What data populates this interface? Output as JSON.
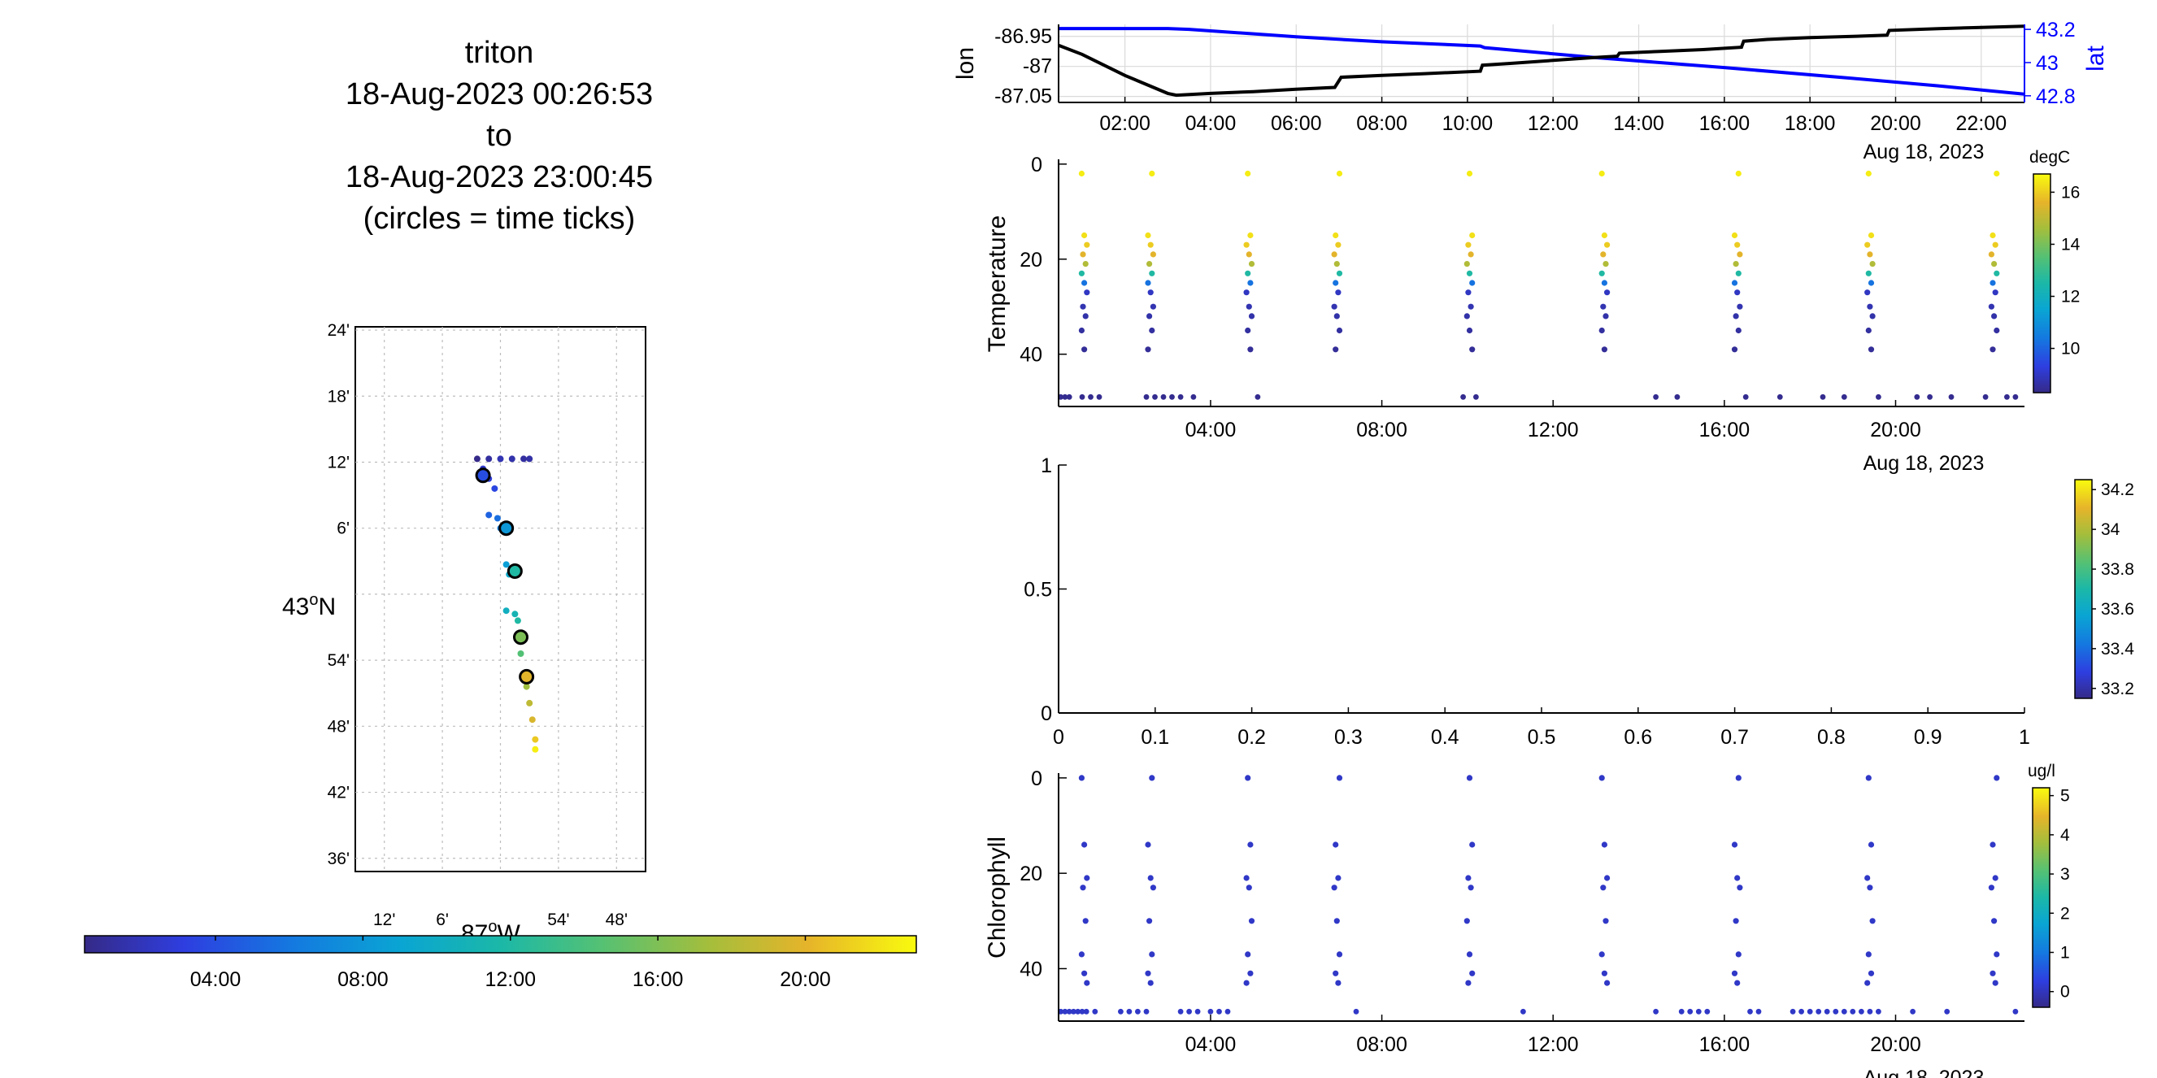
{
  "title_lines": [
    "triton",
    "18-Aug-2023 00:26:53",
    "to",
    "18-Aug-2023 23:00:45",
    "(circles = time ticks)"
  ],
  "colors": {
    "track_lon": "#000000",
    "track_lat": "#0000ff",
    "grid": "#d9d9d9"
  },
  "chart_data": [
    {
      "id": "map",
      "type": "scatter",
      "xlabel": "87oW",
      "ylabel": "43oN",
      "x_ticks": [
        "12'",
        "6'",
        "54'",
        "48'"
      ],
      "x_tick_values": [
        -87.2,
        -87.1,
        -86.9,
        -86.8
      ],
      "y_ticks": [
        "24'",
        "18'",
        "12'",
        "6'",
        "54'",
        "48'",
        "42'",
        "36'"
      ],
      "y_tick_values": [
        43.4,
        43.3,
        43.2,
        43.1,
        42.9,
        42.8,
        42.7,
        42.6
      ],
      "xlim": [
        -87.25,
        -86.75
      ],
      "ylim": [
        42.58,
        43.405
      ],
      "units": {
        "x": "degrees longitude",
        "y": "degrees latitude"
      },
      "track": [
        {
          "lon": -87.04,
          "lat": 43.205,
          "h": 0.5
        },
        {
          "lon": -87.02,
          "lat": 43.205,
          "h": 1.2
        },
        {
          "lon": -87.0,
          "lat": 43.205,
          "h": 1.8
        },
        {
          "lon": -86.98,
          "lat": 43.205,
          "h": 1.6
        },
        {
          "lon": -86.96,
          "lat": 43.205,
          "h": 1.2
        },
        {
          "lon": -86.95,
          "lat": 43.205,
          "h": 1.4
        },
        {
          "lon": -87.03,
          "lat": 43.19,
          "h": 2.6
        },
        {
          "lon": -87.02,
          "lat": 43.175,
          "h": 3.0
        },
        {
          "lon": -87.01,
          "lat": 43.16,
          "h": 3.6
        },
        {
          "lon": -87.02,
          "lat": 43.12,
          "h": 5.0
        },
        {
          "lon": -87.005,
          "lat": 43.115,
          "h": 5.6
        },
        {
          "lon": -87.0,
          "lat": 43.1,
          "h": 6.5
        },
        {
          "lon": -86.99,
          "lat": 43.045,
          "h": 8.5
        },
        {
          "lon": -86.985,
          "lat": 43.03,
          "h": 9.5
        },
        {
          "lon": -86.99,
          "lat": 42.975,
          "h": 10.2
        },
        {
          "lon": -86.975,
          "lat": 42.97,
          "h": 11.0
        },
        {
          "lon": -86.97,
          "lat": 42.96,
          "h": 12.0
        },
        {
          "lon": -86.97,
          "lat": 42.93,
          "h": 13.2
        },
        {
          "lon": -86.965,
          "lat": 42.91,
          "h": 14.5
        },
        {
          "lon": -86.96,
          "lat": 42.88,
          "h": 16.0
        },
        {
          "lon": -86.955,
          "lat": 42.86,
          "h": 17.2
        },
        {
          "lon": -86.95,
          "lat": 42.835,
          "h": 18.5
        },
        {
          "lon": -86.945,
          "lat": 42.81,
          "h": 19.6
        },
        {
          "lon": -86.94,
          "lat": 42.78,
          "h": 21.0
        },
        {
          "lon": -86.94,
          "lat": 42.765,
          "h": 22.5
        }
      ],
      "time_tick_circles": [
        {
          "lon": -87.03,
          "lat": 43.18,
          "time": "04:00"
        },
        {
          "lon": -86.99,
          "lat": 43.1,
          "time": "08:00"
        },
        {
          "lon": -86.975,
          "lat": 43.035,
          "time": "12:00"
        },
        {
          "lon": -86.965,
          "lat": 42.935,
          "time": "16:00"
        },
        {
          "lon": -86.955,
          "lat": 42.875,
          "time": "20:00"
        }
      ]
    },
    {
      "id": "time-colorbar",
      "type": "colorbar",
      "ticks": [
        "04:00",
        "08:00",
        "12:00",
        "16:00",
        "20:00"
      ],
      "tick_values_hours": [
        4,
        8,
        12,
        16,
        20
      ],
      "range_hours": [
        0.45,
        23.01
      ]
    },
    {
      "id": "lonlat",
      "type": "line",
      "ylabel": "lon",
      "y2label": "lat",
      "xlim_hours": [
        0.45,
        23.01
      ],
      "ylim": [
        -87.06,
        -86.93
      ],
      "y2lim": [
        42.76,
        43.23
      ],
      "x_ticks": [
        "02:00",
        "04:00",
        "06:00",
        "08:00",
        "10:00",
        "12:00",
        "14:00",
        "16:00",
        "18:00",
        "20:00",
        "22:00"
      ],
      "y_ticks": [
        "-86.95",
        "-87",
        "-87.05"
      ],
      "y_tick_values": [
        -86.95,
        -87.0,
        -87.05
      ],
      "y2_ticks": [
        "43.2",
        "43",
        "42.8"
      ],
      "y2_tick_values": [
        43.2,
        43.0,
        42.8
      ],
      "date_label": "Aug 18, 2023",
      "series": [
        {
          "name": "lon",
          "x": [
            0.45,
            1.0,
            2.0,
            3.0,
            3.2,
            4.0,
            5.0,
            6.0,
            6.9,
            7.05,
            8.0,
            9.0,
            10.3,
            10.35,
            11.0,
            12.0,
            13.0,
            13.5,
            13.55,
            14.5,
            15.5,
            16.4,
            16.45,
            17.0,
            18.0,
            19.0,
            19.8,
            19.85,
            21.0,
            22.0,
            23.0
          ],
          "values": [
            -86.965,
            -86.98,
            -87.015,
            -87.045,
            -87.048,
            -87.045,
            -87.042,
            -87.038,
            -87.035,
            -87.018,
            -87.015,
            -87.012,
            -87.008,
            -86.998,
            -86.995,
            -86.99,
            -86.985,
            -86.983,
            -86.978,
            -86.975,
            -86.972,
            -86.968,
            -86.958,
            -86.955,
            -86.952,
            -86.95,
            -86.948,
            -86.94,
            -86.937,
            -86.935,
            -86.933
          ]
        },
        {
          "name": "lat",
          "x": [
            0.45,
            3.0,
            3.5,
            6.0,
            8.0,
            10.3,
            10.4,
            13.0,
            16.0,
            19.0,
            21.0,
            23.0
          ],
          "values": [
            43.205,
            43.205,
            43.2,
            43.155,
            43.125,
            43.1,
            43.09,
            43.03,
            42.97,
            42.905,
            42.86,
            42.81
          ]
        }
      ]
    },
    {
      "id": "temperature",
      "type": "scatter",
      "ylabel": "Temperature",
      "colorbar_unit": "degC",
      "colorbar_ticks": [
        "16",
        "14",
        "12",
        "10"
      ],
      "colorbar_tick_values": [
        16,
        14,
        12,
        10
      ],
      "clim": [
        8.3,
        16.7
      ],
      "xlim_hours": [
        0.45,
        23.01
      ],
      "ylim": [
        -1,
        51
      ],
      "y_reversed": true,
      "x_ticks": [
        "04:00",
        "08:00",
        "12:00",
        "16:00",
        "20:00"
      ],
      "y_ticks": [
        "0",
        "20",
        "40"
      ],
      "date_label": "Aug 18, 2023",
      "profiles_hours": [
        1.05,
        2.6,
        4.9,
        6.95,
        10.05,
        13.2,
        16.3,
        19.4,
        22.3
      ],
      "surface_points_hours": [
        1.1,
        2.6,
        4.9,
        6.95,
        10.05,
        13.2,
        16.3,
        19.4,
        22.3
      ],
      "bottom_points_hours": [
        0.5,
        0.6,
        0.7,
        1.0,
        1.2,
        1.4,
        2.5,
        2.7,
        2.9,
        3.1,
        3.3,
        3.6,
        5.1,
        9.9,
        10.2,
        14.4,
        14.9,
        16.5,
        17.3,
        18.3,
        18.8,
        19.6,
        20.5,
        20.8,
        21.3,
        22.1,
        22.6,
        22.8
      ],
      "bottom_depth": 49,
      "profile_depths": [
        2,
        15,
        17,
        19,
        21,
        23,
        25,
        27,
        30,
        32,
        35,
        39
      ],
      "profile_temps": [
        16.5,
        16.3,
        16.0,
        15.6,
        14.8,
        12.6,
        10.3,
        9.0,
        8.8,
        8.7,
        8.6,
        8.5
      ]
    },
    {
      "id": "salinity",
      "type": "scatter",
      "xlim": [
        0,
        1
      ],
      "ylim": [
        0,
        1
      ],
      "x_ticks": [
        "0",
        "0.1",
        "0.2",
        "0.3",
        "0.4",
        "0.5",
        "0.6",
        "0.7",
        "0.8",
        "0.9",
        "1"
      ],
      "y_ticks": [
        "1",
        "0.5",
        "0"
      ],
      "colorbar_ticks": [
        "34.2",
        "34",
        "33.8",
        "33.6",
        "33.4",
        "33.2"
      ],
      "colorbar_tick_values": [
        34.2,
        34.0,
        33.8,
        33.6,
        33.4,
        33.2
      ],
      "clim": [
        33.15,
        34.25
      ]
    },
    {
      "id": "chlorophyll",
      "type": "scatter",
      "ylabel": "Chlorophyll",
      "colorbar_unit": "ug/l",
      "colorbar_ticks": [
        "5",
        "4",
        "3",
        "2",
        "1",
        "0"
      ],
      "colorbar_tick_values": [
        5,
        4,
        3,
        2,
        1,
        0
      ],
      "clim": [
        -0.4,
        5.2
      ],
      "xlim_hours": [
        0.45,
        23.01
      ],
      "ylim": [
        -1,
        51
      ],
      "y_reversed": true,
      "x_ticks": [
        "04:00",
        "08:00",
        "12:00",
        "16:00",
        "20:00"
      ],
      "y_ticks": [
        "0",
        "20",
        "40"
      ],
      "date_label": "Aug 18, 2023",
      "profiles_hours": [
        1.05,
        2.6,
        4.9,
        6.95,
        10.05,
        13.2,
        16.3,
        19.4,
        22.3
      ],
      "bottom_points_hours": [
        0.5,
        0.6,
        0.7,
        0.8,
        0.9,
        1.0,
        1.1,
        1.3,
        1.9,
        2.1,
        2.3,
        2.5,
        3.3,
        3.5,
        3.7,
        4.0,
        4.2,
        4.4,
        7.4,
        11.3,
        14.4,
        15.0,
        15.2,
        15.4,
        15.6,
        16.6,
        16.8,
        17.6,
        17.8,
        18.0,
        18.2,
        18.4,
        18.6,
        18.8,
        19.0,
        19.2,
        19.4,
        19.6,
        20.4,
        21.2,
        22.8
      ],
      "bottom_depth": 49,
      "profile_depths": [
        0,
        14,
        21,
        23,
        30,
        37,
        41,
        43
      ],
      "chl_value": 0.1
    }
  ]
}
